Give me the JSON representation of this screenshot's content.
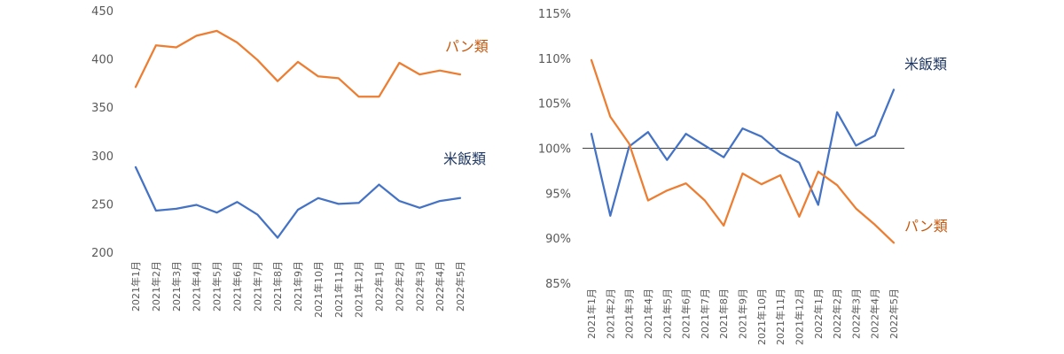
{
  "chart_data": [
    {
      "type": "line",
      "categories": [
        "2021年1月",
        "2021年2月",
        "2021年3月",
        "2021年4月",
        "2021年5月",
        "2021年6月",
        "2021年7月",
        "2021年8月",
        "2021年9月",
        "2021年10月",
        "2021年11月",
        "2021年12月",
        "2022年1月",
        "2022年2月",
        "2022年3月",
        "2022年4月",
        "2022年5月"
      ],
      "ylim": [
        200,
        450
      ],
      "yticks": [
        "200",
        "250",
        "300",
        "350",
        "400",
        "450"
      ],
      "ytick_values": [
        200,
        250,
        300,
        350,
        400,
        450
      ],
      "grid": false,
      "series": [
        {
          "name": "パン類",
          "color": "#ED7D31",
          "values": [
            371,
            414,
            412,
            424,
            429,
            417,
            399,
            377,
            397,
            382,
            380,
            361,
            361,
            396,
            384,
            388,
            384
          ]
        },
        {
          "name": "米飯類",
          "color": "#4472C4",
          "values": [
            288,
            243,
            245,
            249,
            241,
            252,
            239,
            215,
            244,
            256,
            250,
            251,
            270,
            253,
            246,
            253,
            256
          ]
        }
      ]
    },
    {
      "type": "line",
      "categories": [
        "2021年1月",
        "2021年2月",
        "2021年3月",
        "2021年4月",
        "2021年5月",
        "2021年6月",
        "2021年7月",
        "2021年8月",
        "2021年9月",
        "2021年10月",
        "2021年11月",
        "2021年12月",
        "2022年1月",
        "2022年2月",
        "2022年3月",
        "2022年4月",
        "2022年5月"
      ],
      "ylim": [
        85,
        115
      ],
      "yticks": [
        "85%",
        "90%",
        "95%",
        "100%",
        "105%",
        "110%",
        "115%"
      ],
      "ytick_values": [
        85,
        90,
        95,
        100,
        105,
        110,
        115
      ],
      "reference_line": 100,
      "grid": false,
      "series": [
        {
          "name": "米飯類",
          "color": "#4472C4",
          "values": [
            101.6,
            92.5,
            100.2,
            101.8,
            98.7,
            101.6,
            100.3,
            99.0,
            102.2,
            101.3,
            99.5,
            98.4,
            93.7,
            104.0,
            100.3,
            101.4,
            106.5
          ]
        },
        {
          "name": "パン類",
          "color": "#ED7D31",
          "values": [
            109.8,
            103.5,
            100.5,
            94.2,
            95.3,
            96.1,
            94.2,
            91.4,
            97.2,
            96.0,
            97.0,
            92.4,
            97.4,
            95.9,
            93.3,
            91.5,
            89.5
          ]
        }
      ]
    }
  ]
}
